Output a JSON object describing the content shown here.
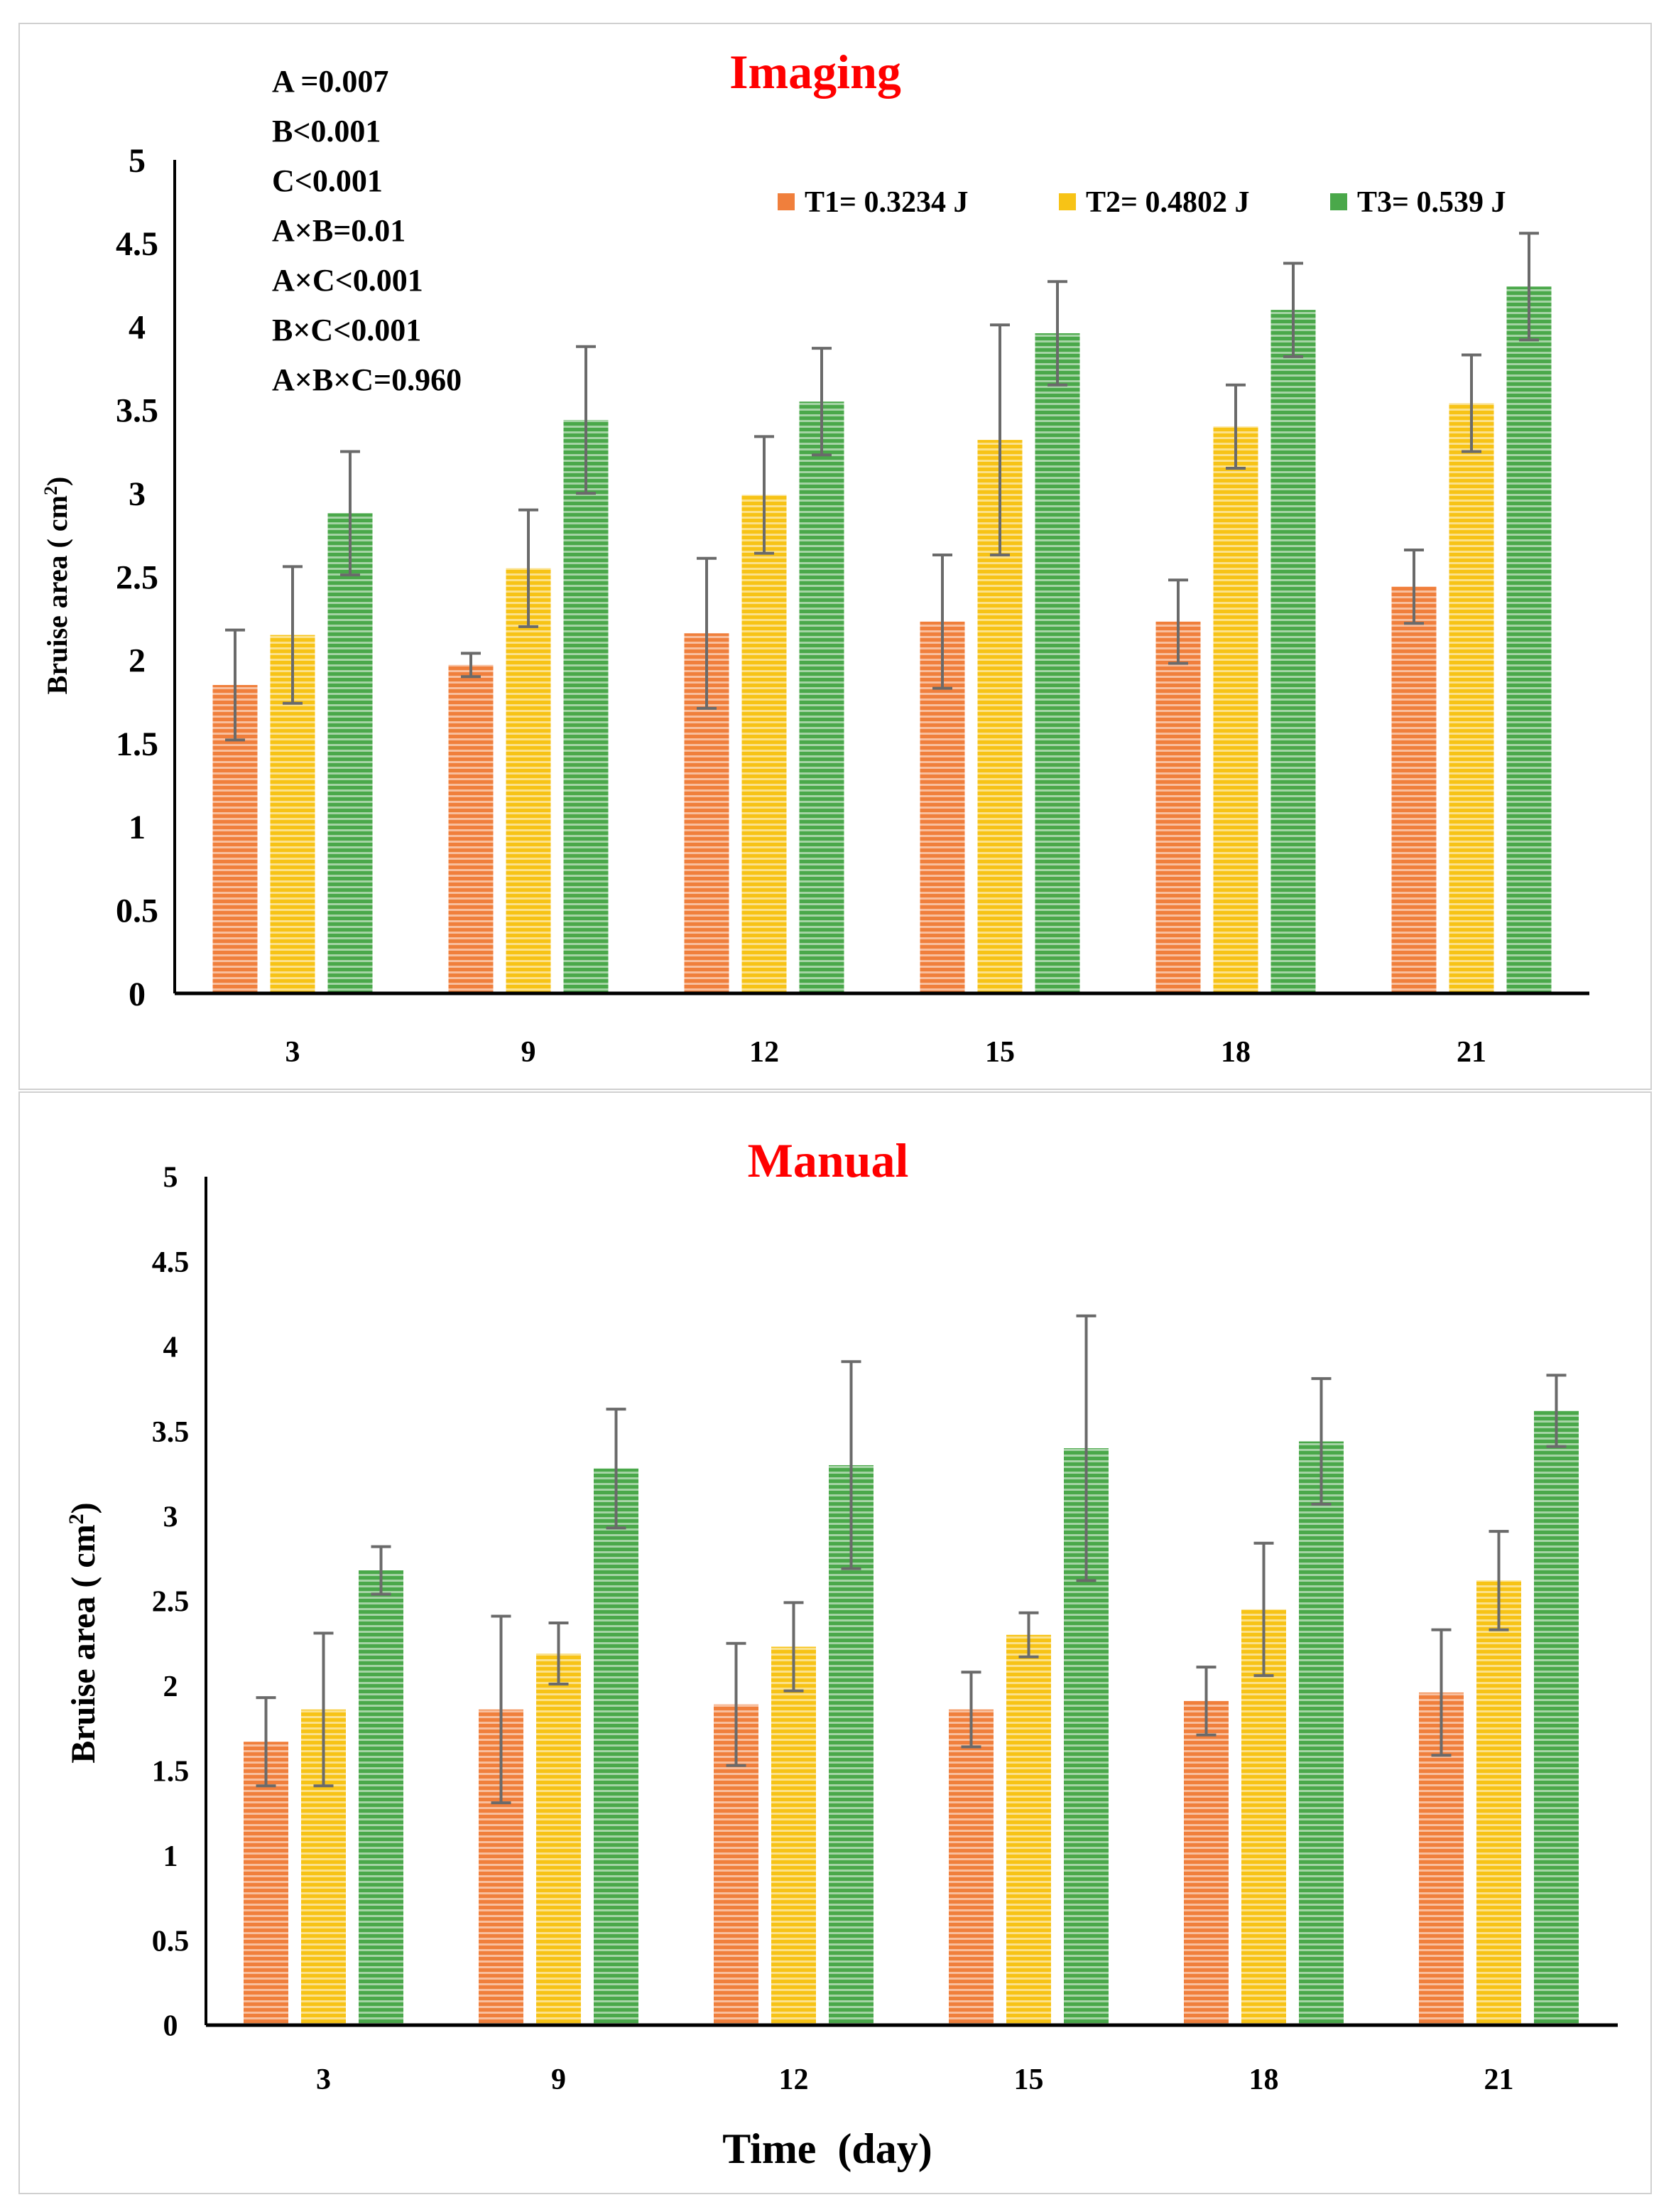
{
  "colors": {
    "t1": "#f07f3c",
    "t2": "#f7c316",
    "t3": "#4aa84a",
    "title": "#ff0000",
    "error_bar": "#6a6a6a",
    "axis": "#000000"
  },
  "shared": {
    "legend": [
      "T1= 0.3234 J",
      "T2= 0.4802 J",
      "T3= 0.539 J"
    ],
    "xlabel": "Time  (day)",
    "ylabel_prefix": "Bruise area ( cm",
    "ylabel_sup": "2",
    "ylabel_suffix": ")"
  },
  "stats": [
    "A =0.007",
    "B<0.001",
    "C<0.001",
    "A×B=0.01",
    "A×C<0.001",
    "B×C<0.001",
    "A×B×C=0.960"
  ],
  "chart_data": [
    {
      "type": "bar",
      "title": "Imaging",
      "xlabel": "",
      "ylabel": "Bruise area ( cm2)",
      "ylim": [
        0,
        5
      ],
      "yticks": [
        "0",
        "0.5",
        "1",
        "1.5",
        "2",
        "2.5",
        "3",
        "3.5",
        "4",
        "4.5",
        "5"
      ],
      "categories": [
        "3",
        "9",
        "12",
        "15",
        "18",
        "21"
      ],
      "series": [
        {
          "name": "T1= 0.3234 J",
          "values": [
            1.85,
            1.97,
            2.16,
            2.23,
            2.23,
            2.44
          ],
          "errors": [
            0.33,
            0.07,
            0.45,
            0.4,
            0.25,
            0.22
          ]
        },
        {
          "name": "T2= 0.4802 J",
          "values": [
            2.15,
            2.55,
            2.99,
            3.32,
            3.4,
            3.54
          ],
          "errors": [
            0.41,
            0.35,
            0.35,
            0.69,
            0.25,
            0.29
          ]
        },
        {
          "name": "T3= 0.539 J",
          "values": [
            2.88,
            3.44,
            3.55,
            3.96,
            4.1,
            4.24
          ],
          "errors": [
            0.37,
            0.44,
            0.32,
            0.31,
            0.28,
            0.32
          ]
        }
      ]
    },
    {
      "type": "bar",
      "title": "Manual",
      "xlabel": "Time  (day)",
      "ylabel": "Bruise area ( cm2)",
      "ylim": [
        0,
        5
      ],
      "yticks": [
        "0",
        "0.5",
        "1",
        "1.5",
        "2",
        "2.5",
        "3",
        "3.5",
        "4",
        "4.5",
        "5"
      ],
      "categories": [
        "3",
        "9",
        "12",
        "15",
        "18",
        "21"
      ],
      "series": [
        {
          "name": "T1= 0.3234 J",
          "values": [
            1.67,
            1.86,
            1.89,
            1.86,
            1.91,
            1.96
          ],
          "errors": [
            0.26,
            0.55,
            0.36,
            0.22,
            0.2,
            0.37
          ]
        },
        {
          "name": "T2= 0.4802 J",
          "values": [
            1.86,
            2.19,
            2.23,
            2.3,
            2.45,
            2.62
          ],
          "errors": [
            0.45,
            0.18,
            0.26,
            0.13,
            0.39,
            0.29
          ]
        },
        {
          "name": "T3= 0.539 J",
          "values": [
            2.68,
            3.28,
            3.3,
            3.4,
            3.44,
            3.62
          ],
          "errors": [
            0.14,
            0.35,
            0.61,
            0.78,
            0.37,
            0.21
          ]
        }
      ]
    }
  ]
}
